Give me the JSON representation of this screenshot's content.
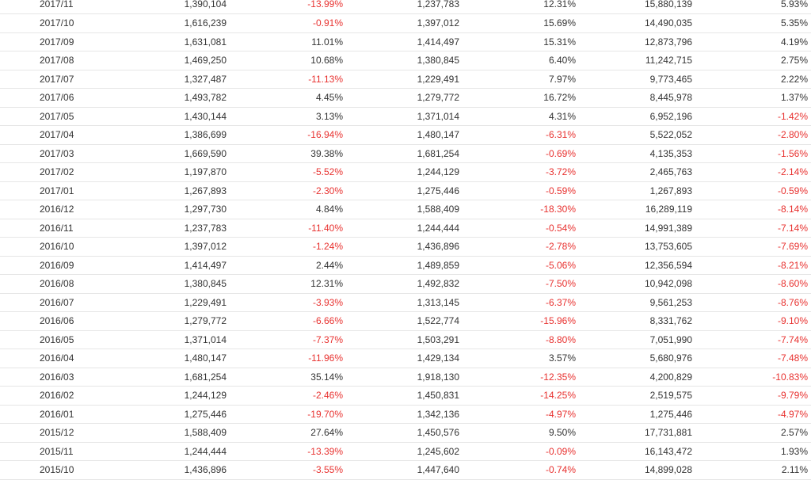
{
  "table": {
    "rows": [
      {
        "month": "2017/11",
        "v1": "1,390,104",
        "p1": "-13.99%",
        "v2": "1,237,783",
        "p2": "12.31%",
        "v3": "15,880,139",
        "p3": "5.93%"
      },
      {
        "month": "2017/10",
        "v1": "1,616,239",
        "p1": "-0.91%",
        "v2": "1,397,012",
        "p2": "15.69%",
        "v3": "14,490,035",
        "p3": "5.35%"
      },
      {
        "month": "2017/09",
        "v1": "1,631,081",
        "p1": "11.01%",
        "v2": "1,414,497",
        "p2": "15.31%",
        "v3": "12,873,796",
        "p3": "4.19%"
      },
      {
        "month": "2017/08",
        "v1": "1,469,250",
        "p1": "10.68%",
        "v2": "1,380,845",
        "p2": "6.40%",
        "v3": "11,242,715",
        "p3": "2.75%"
      },
      {
        "month": "2017/07",
        "v1": "1,327,487",
        "p1": "-11.13%",
        "v2": "1,229,491",
        "p2": "7.97%",
        "v3": "9,773,465",
        "p3": "2.22%"
      },
      {
        "month": "2017/06",
        "v1": "1,493,782",
        "p1": "4.45%",
        "v2": "1,279,772",
        "p2": "16.72%",
        "v3": "8,445,978",
        "p3": "1.37%"
      },
      {
        "month": "2017/05",
        "v1": "1,430,144",
        "p1": "3.13%",
        "v2": "1,371,014",
        "p2": "4.31%",
        "v3": "6,952,196",
        "p3": "-1.42%"
      },
      {
        "month": "2017/04",
        "v1": "1,386,699",
        "p1": "-16.94%",
        "v2": "1,480,147",
        "p2": "-6.31%",
        "v3": "5,522,052",
        "p3": "-2.80%"
      },
      {
        "month": "2017/03",
        "v1": "1,669,590",
        "p1": "39.38%",
        "v2": "1,681,254",
        "p2": "-0.69%",
        "v3": "4,135,353",
        "p3": "-1.56%"
      },
      {
        "month": "2017/02",
        "v1": "1,197,870",
        "p1": "-5.52%",
        "v2": "1,244,129",
        "p2": "-3.72%",
        "v3": "2,465,763",
        "p3": "-2.14%"
      },
      {
        "month": "2017/01",
        "v1": "1,267,893",
        "p1": "-2.30%",
        "v2": "1,275,446",
        "p2": "-0.59%",
        "v3": "1,267,893",
        "p3": "-0.59%"
      },
      {
        "month": "2016/12",
        "v1": "1,297,730",
        "p1": "4.84%",
        "v2": "1,588,409",
        "p2": "-18.30%",
        "v3": "16,289,119",
        "p3": "-8.14%"
      },
      {
        "month": "2016/11",
        "v1": "1,237,783",
        "p1": "-11.40%",
        "v2": "1,244,444",
        "p2": "-0.54%",
        "v3": "14,991,389",
        "p3": "-7.14%"
      },
      {
        "month": "2016/10",
        "v1": "1,397,012",
        "p1": "-1.24%",
        "v2": "1,436,896",
        "p2": "-2.78%",
        "v3": "13,753,605",
        "p3": "-7.69%"
      },
      {
        "month": "2016/09",
        "v1": "1,414,497",
        "p1": "2.44%",
        "v2": "1,489,859",
        "p2": "-5.06%",
        "v3": "12,356,594",
        "p3": "-8.21%"
      },
      {
        "month": "2016/08",
        "v1": "1,380,845",
        "p1": "12.31%",
        "v2": "1,492,832",
        "p2": "-7.50%",
        "v3": "10,942,098",
        "p3": "-8.60%"
      },
      {
        "month": "2016/07",
        "v1": "1,229,491",
        "p1": "-3.93%",
        "v2": "1,313,145",
        "p2": "-6.37%",
        "v3": "9,561,253",
        "p3": "-8.76%"
      },
      {
        "month": "2016/06",
        "v1": "1,279,772",
        "p1": "-6.66%",
        "v2": "1,522,774",
        "p2": "-15.96%",
        "v3": "8,331,762",
        "p3": "-9.10%"
      },
      {
        "month": "2016/05",
        "v1": "1,371,014",
        "p1": "-7.37%",
        "v2": "1,503,291",
        "p2": "-8.80%",
        "v3": "7,051,990",
        "p3": "-7.74%"
      },
      {
        "month": "2016/04",
        "v1": "1,480,147",
        "p1": "-11.96%",
        "v2": "1,429,134",
        "p2": "3.57%",
        "v3": "5,680,976",
        "p3": "-7.48%"
      },
      {
        "month": "2016/03",
        "v1": "1,681,254",
        "p1": "35.14%",
        "v2": "1,918,130",
        "p2": "-12.35%",
        "v3": "4,200,829",
        "p3": "-10.83%"
      },
      {
        "month": "2016/02",
        "v1": "1,244,129",
        "p1": "-2.46%",
        "v2": "1,450,831",
        "p2": "-14.25%",
        "v3": "2,519,575",
        "p3": "-9.79%"
      },
      {
        "month": "2016/01",
        "v1": "1,275,446",
        "p1": "-19.70%",
        "v2": "1,342,136",
        "p2": "-4.97%",
        "v3": "1,275,446",
        "p3": "-4.97%"
      },
      {
        "month": "2015/12",
        "v1": "1,588,409",
        "p1": "27.64%",
        "v2": "1,450,576",
        "p2": "9.50%",
        "v3": "17,731,881",
        "p3": "2.57%"
      },
      {
        "month": "2015/11",
        "v1": "1,244,444",
        "p1": "-13.39%",
        "v2": "1,245,602",
        "p2": "-0.09%",
        "v3": "16,143,472",
        "p3": "1.93%"
      },
      {
        "month": "2015/10",
        "v1": "1,436,896",
        "p1": "-3.55%",
        "v2": "1,447,640",
        "p2": "-0.74%",
        "v3": "14,899,028",
        "p3": "2.11%"
      }
    ]
  },
  "colors": {
    "negative": "#e8312f",
    "text": "#333333",
    "row_border": "#e6e6e6"
  }
}
